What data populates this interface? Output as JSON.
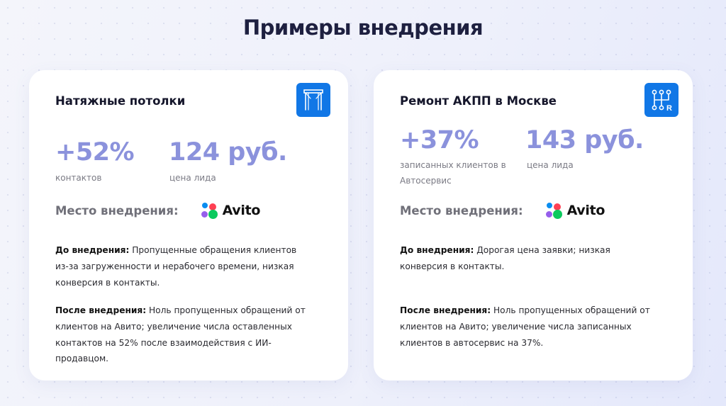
{
  "page": {
    "title": "Примеры внедрения"
  },
  "cards": [
    {
      "title": "Натяжные потолки",
      "icon": "ceiling-icon",
      "stats": [
        {
          "value": "+52%",
          "label": "контактов"
        },
        {
          "value": "124 руб.",
          "label": "цена лида"
        }
      ],
      "place_label": "Место внедрения:",
      "platform": "Avito",
      "before_label": "До внедрения:",
      "before_text": " Пропущенные обращения клиентов из-за загруженности и нерабочего времени, низкая конверсия в контакты.",
      "after_label": "После внедрения:",
      "after_text": " Ноль пропущенных обращений от клиентов на Авито; увеличение числа оставленных контактов на 52% после взаимодействия с ИИ-продавцом."
    },
    {
      "title": "Ремонт АКПП в Москве",
      "icon": "gearbox-icon",
      "stats": [
        {
          "value": "+37%",
          "label": "записанных клиентов в Автосервис"
        },
        {
          "value": "143 руб.",
          "label": "цена лида"
        }
      ],
      "place_label": "Место внедрения:",
      "platform": "Avito",
      "before_label": "До внедрения:",
      "before_text": " Дорогая цена заявки; низкая конверсия в контакты.",
      "after_label": "После внедрения:",
      "after_text": " Ноль пропущенных обращений от клиентов на Авито; увеличение числа записанных клиентов в автосервис на 37%."
    }
  ],
  "colors": {
    "accent_stat": "#8b92dc",
    "icon_bg": "#1177e6",
    "avito_blue": "#0a8df0",
    "avito_red": "#ff4053",
    "avito_purple": "#965eeb",
    "avito_green": "#0bca5e"
  }
}
